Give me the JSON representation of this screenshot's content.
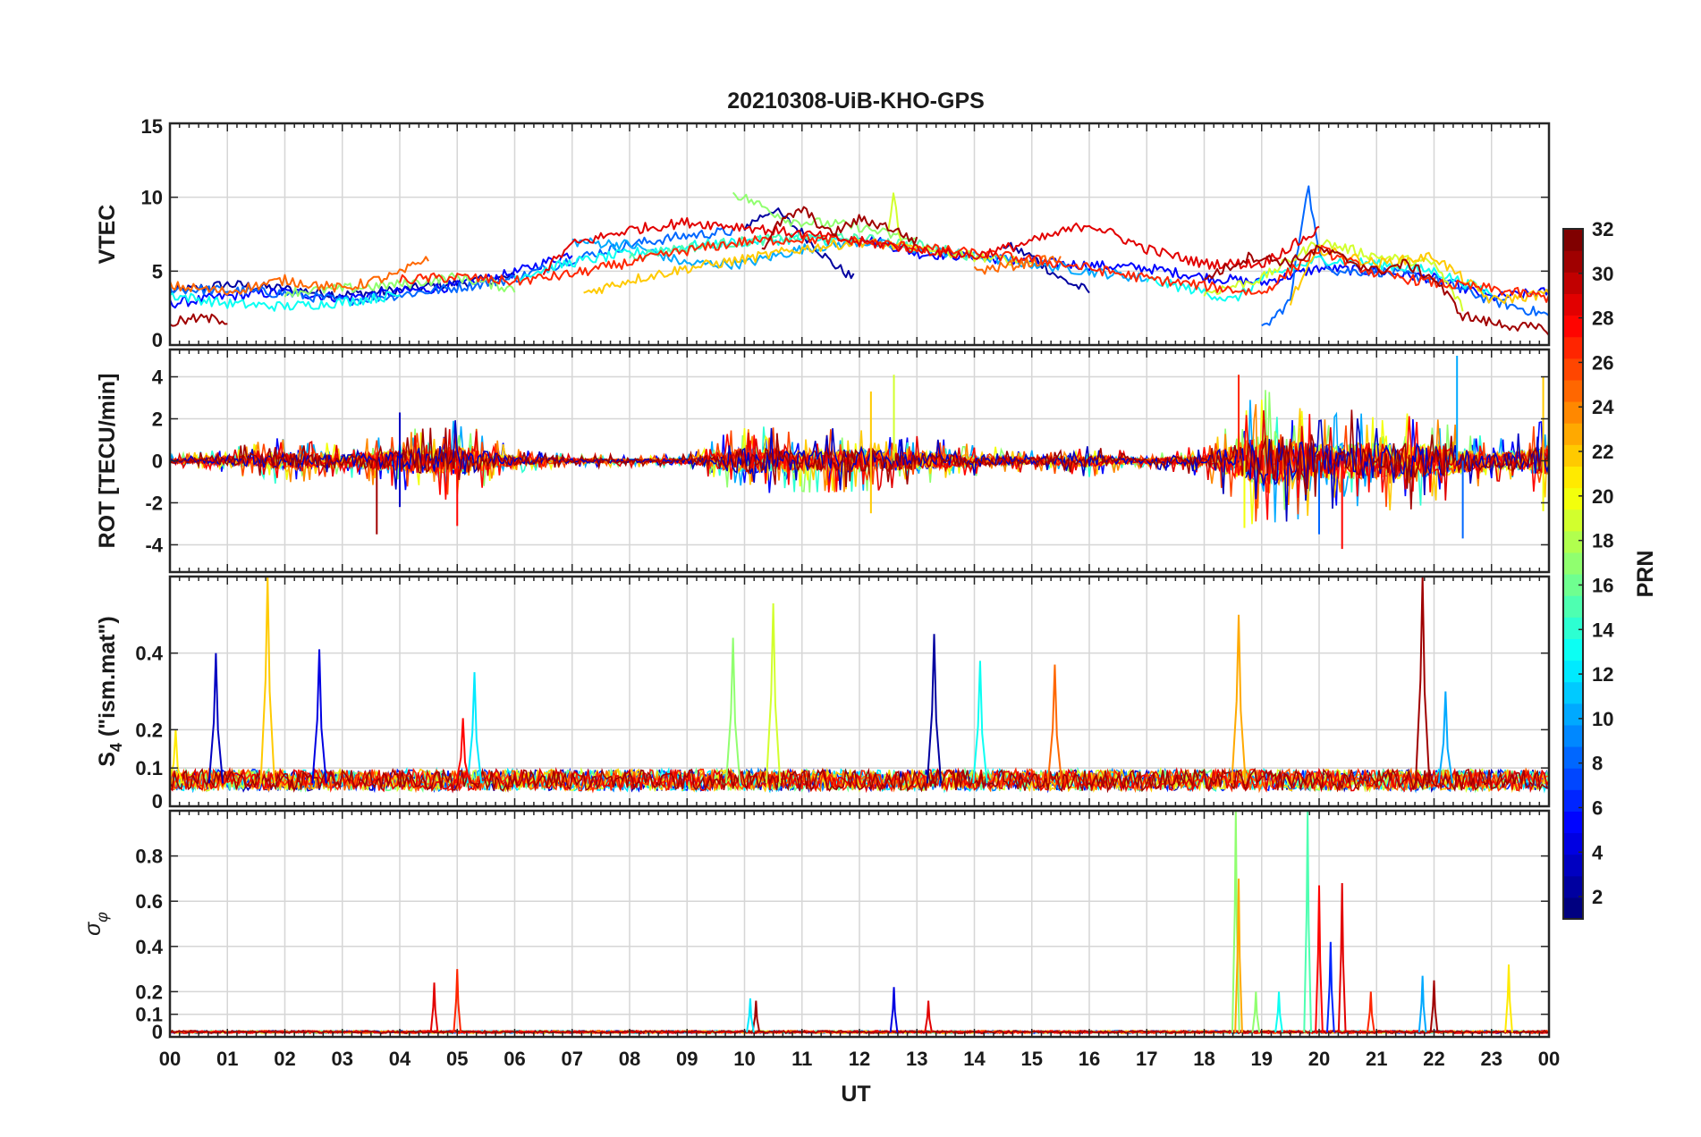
{
  "title": "20210308-UiB-KHO-GPS",
  "chart_data": [
    {
      "type": "line",
      "panel": "vtec",
      "ylabel": "VTEC",
      "ylim": [
        0,
        15
      ],
      "yticks": [
        0,
        5,
        10,
        15
      ],
      "ytick_labels": [
        "0",
        "5",
        "10",
        "15"
      ],
      "grid": true,
      "series": [
        {
          "prn": 2,
          "segments": [
            {
              "x": [
                0.0,
                1.0,
                2.0,
                3.0,
                4.0,
                5.0,
                6.0
              ],
              "y": [
                3.6,
                4.1,
                3.8,
                3.4,
                3.7,
                4.2,
                4.6
              ]
            },
            {
              "x": [
                10.0,
                10.5,
                11.0,
                11.5,
                11.9
              ],
              "y": [
                8.0,
                9.2,
                7.6,
                5.6,
                4.5
              ]
            },
            {
              "x": [
                14.5,
                15.0,
                15.5,
                16.0
              ],
              "y": [
                6.8,
                6.0,
                4.5,
                3.6
              ]
            }
          ]
        },
        {
          "prn": 5,
          "segments": [
            {
              "x": [
                0.0,
                1.0,
                2.0,
                3.0,
                4.0,
                5.0,
                6.0,
                7.0
              ],
              "y": [
                2.8,
                3.3,
                3.6,
                3.2,
                3.6,
                4.0,
                4.9,
                6.2
              ]
            },
            {
              "x": [
                12.0,
                13.0,
                14.0,
                15.0,
                16.0,
                17.0,
                18.0,
                19.0,
                20.0,
                21.0,
                22.0,
                23.0,
                24.0
              ],
              "y": [
                7.4,
                6.2,
                6.0,
                5.6,
                5.4,
                5.2,
                4.6,
                4.2,
                5.2,
                5.0,
                4.5,
                3.2,
                3.6
              ]
            }
          ]
        },
        {
          "prn": 8,
          "segments": [
            {
              "x": [
                0.0,
                1.0,
                2.0,
                3.0,
                4.0,
                5.0,
                6.0,
                7.0,
                8.0,
                9.0,
                9.8
              ],
              "y": [
                3.8,
                3.7,
                3.5,
                3.0,
                3.4,
                3.9,
                4.5,
                5.8,
                6.8,
                7.4,
                7.7
              ]
            },
            {
              "x": [
                19.0,
                19.5,
                19.8,
                20.0,
                20.3,
                21.0,
                22.0,
                23.0,
                24.0
              ],
              "y": [
                1.0,
                3.0,
                11.0,
                6.0,
                5.0,
                5.0,
                4.5,
                3.0,
                2.0
              ]
            }
          ]
        },
        {
          "prn": 10,
          "segments": [
            {
              "x": [
                7.0,
                8.0,
                9.0,
                10.0,
                11.0,
                12.0,
                13.0,
                14.0,
                15.0,
                16.0,
                17.0
              ],
              "y": [
                7.0,
                6.8,
                5.5,
                5.5,
                6.5,
                7.0,
                6.5,
                6.0,
                5.5,
                5.0,
                4.5
              ]
            }
          ]
        },
        {
          "prn": 13,
          "segments": [
            {
              "x": [
                0.0,
                1.0,
                2.0,
                3.0,
                4.0
              ],
              "y": [
                3.4,
                2.8,
                2.6,
                2.9,
                3.4
              ]
            },
            {
              "x": [
                6.0,
                7.0,
                8.0,
                9.0,
                10.0,
                11.0,
                12.0
              ],
              "y": [
                4.6,
                5.6,
                6.2,
                6.7,
                7.0,
                7.2,
                7.0
              ]
            },
            {
              "x": [
                17.0,
                18.0,
                18.5,
                19.0,
                20.0,
                21.0,
                22.0,
                23.0
              ],
              "y": [
                4.4,
                3.6,
                3.0,
                4.5,
                5.8,
                5.5,
                5.0,
                3.5
              ]
            }
          ]
        },
        {
          "prn": 15,
          "segments": [
            {
              "x": [
                8.0,
                9.0,
                10.0,
                11.0,
                12.0,
                13.0,
                14.0
              ],
              "y": [
                6.0,
                6.6,
                7.0,
                7.3,
                7.2,
                6.8,
                6.0
              ]
            }
          ]
        },
        {
          "prn": 17,
          "segments": [
            {
              "x": [
                2.0,
                3.0,
                4.0,
                5.0,
                6.0
              ],
              "y": [
                3.6,
                3.8,
                4.1,
                4.6,
                3.8
              ]
            },
            {
              "x": [
                9.8,
                10.2,
                10.8,
                11.5,
                12.0,
                12.5,
                13.0
              ],
              "y": [
                10.3,
                9.6,
                8.4,
                8.2,
                8.0,
                7.5,
                7.0
              ]
            }
          ]
        },
        {
          "prn": 19,
          "segments": [
            {
              "x": [
                12.5,
                12.6,
                12.7,
                13.0,
                14.0,
                15.0
              ],
              "y": [
                8.0,
                10.3,
                7.0,
                6.5,
                6.0,
                5.6
              ]
            },
            {
              "x": [
                18.0,
                19.0,
                20.0,
                21.0,
                22.0,
                22.5
              ],
              "y": [
                3.5,
                4.5,
                7.0,
                6.0,
                5.5,
                2.5
              ]
            }
          ]
        },
        {
          "prn": 22,
          "segments": [
            {
              "x": [
                7.2,
                8.0,
                9.0,
                10.0,
                11.0,
                12.0,
                13.0
              ],
              "y": [
                3.5,
                4.4,
                5.2,
                5.8,
                6.5,
                7.0,
                6.5
              ]
            },
            {
              "x": [
                19.5,
                20.0,
                21.0,
                22.0,
                23.0,
                24.0
              ],
              "y": [
                3.0,
                6.5,
                5.5,
                6.0,
                3.0,
                3.5
              ]
            }
          ]
        },
        {
          "prn": 25,
          "segments": [
            {
              "x": [
                0.0,
                1.0,
                2.0,
                3.0,
                4.0,
                4.5
              ],
              "y": [
                4.0,
                3.6,
                4.4,
                3.8,
                4.8,
                6.0
              ]
            },
            {
              "x": [
                14.0,
                15.0,
                15.5
              ],
              "y": [
                5.0,
                5.6,
                5.8
              ]
            }
          ]
        },
        {
          "prn": 27,
          "segments": [
            {
              "x": [
                4.0,
                5.0,
                6.0,
                7.0,
                8.0,
                9.0,
                10.0,
                11.0,
                12.0,
                13.0,
                14.0,
                15.0,
                16.0,
                17.0,
                18.0,
                19.0,
                20.0,
                21.0,
                22.0,
                23.0,
                24.0
              ],
              "y": [
                4.4,
                4.6,
                4.3,
                4.8,
                5.6,
                6.4,
                7.0,
                7.2,
                7.0,
                6.6,
                6.2,
                5.8,
                5.2,
                4.5,
                4.0,
                3.5,
                6.5,
                4.8,
                4.2,
                3.8,
                3.2
              ]
            }
          ]
        },
        {
          "prn": 29,
          "segments": [
            {
              "x": [
                6.5,
                7.0,
                8.0,
                9.0,
                10.0,
                11.0,
                12.0,
                13.0,
                14.0,
                15.0,
                16.0,
                17.0,
                18.0,
                19.0,
                20.0
              ],
              "y": [
                5.0,
                6.8,
                7.8,
                8.3,
                8.0,
                7.5,
                7.0,
                6.5,
                6.0,
                7.0,
                8.2,
                6.5,
                5.5,
                5.5,
                7.8
              ]
            }
          ]
        },
        {
          "prn": 31,
          "segments": [
            {
              "x": [
                0.0,
                0.5,
                1.0
              ],
              "y": [
                1.5,
                1.8,
                1.7
              ]
            },
            {
              "x": [
                10.3,
                10.6,
                11.0,
                11.5,
                12.0,
                12.5,
                13.0
              ],
              "y": [
                6.5,
                8.2,
                9.2,
                7.5,
                8.5,
                8.0,
                7.0
              ]
            },
            {
              "x": [
                18.0,
                18.8,
                19.5,
                20.0,
                21.0,
                21.5,
                22.0,
                22.5,
                23.0,
                24.0
              ],
              "y": [
                4.5,
                6.0,
                5.6,
                6.5,
                5.0,
                5.5,
                4.5,
                2.0,
                1.5,
                1.0
              ]
            }
          ]
        }
      ]
    },
    {
      "type": "line",
      "panel": "rot",
      "ylabel": "ROT [TECU/min]",
      "ylim": [
        -5.3,
        5.3
      ],
      "yticks": [
        -4,
        -2,
        0,
        2,
        4
      ],
      "ytick_labels": [
        "-4",
        "-2",
        "0",
        "2",
        "4"
      ],
      "grid": true,
      "activity_envelope_tecu_per_min": [
        0.3,
        0.6,
        1.2,
        0.8,
        1.5,
        2.0,
        0.6,
        0.3,
        0.3,
        0.3,
        1.8,
        1.5,
        1.6,
        1.2,
        0.8,
        0.5,
        0.8,
        0.3,
        0.8,
        3.5,
        2.5,
        2.5,
        2.2,
        1.0,
        2.0
      ],
      "peaks": [
        {
          "x": 3.6,
          "y": -3.5,
          "prn": 31
        },
        {
          "x": 4.0,
          "y": 2.3,
          "prn": 3
        },
        {
          "x": 4.0,
          "y": -2.2,
          "prn": 3
        },
        {
          "x": 5.0,
          "y": -3.1,
          "prn": 28
        },
        {
          "x": 12.6,
          "y": 4.1,
          "prn": 19
        },
        {
          "x": 12.2,
          "y": 3.3,
          "prn": 22
        },
        {
          "x": 12.2,
          "y": -2.5,
          "prn": 22
        },
        {
          "x": 18.6,
          "y": 4.1,
          "prn": 27
        },
        {
          "x": 18.7,
          "y": -3.2,
          "prn": 20
        },
        {
          "x": 20.4,
          "y": -4.2,
          "prn": 28
        },
        {
          "x": 20.0,
          "y": -3.5,
          "prn": 8
        },
        {
          "x": 22.4,
          "y": 5.0,
          "prn": 10
        },
        {
          "x": 22.5,
          "y": -3.7,
          "prn": 8
        },
        {
          "x": 23.9,
          "y": 4.0,
          "prn": 22
        },
        {
          "x": 23.9,
          "y": -2.4,
          "prn": 20
        }
      ]
    },
    {
      "type": "line",
      "panel": "s4",
      "ylabel": "S",
      "ylabel_subscript": "4",
      "ylabel_suffix": " (\"ism.mat\")",
      "ylim": [
        0,
        0.6
      ],
      "yticks": [
        0,
        0.1,
        0.2,
        0.4
      ],
      "ytick_labels": [
        "0",
        "0.1",
        "0.2",
        "0.4"
      ],
      "grid": true,
      "baseline": 0.06,
      "peaks": [
        {
          "x": 0.8,
          "y": 0.4,
          "prn": 3
        },
        {
          "x": 1.7,
          "y": 0.6,
          "prn": 22
        },
        {
          "x": 2.6,
          "y": 0.41,
          "prn": 4
        },
        {
          "x": 5.3,
          "y": 0.35,
          "prn": 12
        },
        {
          "x": 5.1,
          "y": 0.23,
          "prn": 28
        },
        {
          "x": 9.8,
          "y": 0.44,
          "prn": 17
        },
        {
          "x": 10.5,
          "y": 0.53,
          "prn": 19
        },
        {
          "x": 13.3,
          "y": 0.45,
          "prn": 2
        },
        {
          "x": 14.1,
          "y": 0.38,
          "prn": 13
        },
        {
          "x": 15.4,
          "y": 0.37,
          "prn": 25
        },
        {
          "x": 18.6,
          "y": 0.5,
          "prn": 23
        },
        {
          "x": 21.8,
          "y": 0.6,
          "prn": 31
        },
        {
          "x": 22.2,
          "y": 0.3,
          "prn": 10
        },
        {
          "x": 0.1,
          "y": 0.2,
          "prn": 21
        }
      ]
    },
    {
      "type": "line",
      "panel": "sigma_phi",
      "ylabel": "σ",
      "ylabel_subscript": "φ",
      "ylim": [
        0,
        1
      ],
      "yticks": [
        0,
        0.1,
        0.2,
        0.4,
        0.6,
        0.8
      ],
      "ytick_labels": [
        "0",
        "0.1",
        "0.2",
        "0.4",
        "0.6",
        "0.8"
      ],
      "grid": true,
      "baseline": 0.02,
      "peaks": [
        {
          "x": 4.6,
          "y": 0.24,
          "prn": 29
        },
        {
          "x": 5.0,
          "y": 0.3,
          "prn": 27
        },
        {
          "x": 10.2,
          "y": 0.16,
          "prn": 31
        },
        {
          "x": 10.1,
          "y": 0.17,
          "prn": 12
        },
        {
          "x": 12.6,
          "y": 0.22,
          "prn": 4
        },
        {
          "x": 13.2,
          "y": 0.16,
          "prn": 29
        },
        {
          "x": 18.55,
          "y": 1.0,
          "prn": 17
        },
        {
          "x": 18.6,
          "y": 0.7,
          "prn": 23
        },
        {
          "x": 18.9,
          "y": 0.2,
          "prn": 17
        },
        {
          "x": 19.3,
          "y": 0.2,
          "prn": 13
        },
        {
          "x": 19.8,
          "y": 1.0,
          "prn": 15
        },
        {
          "x": 20.0,
          "y": 0.67,
          "prn": 28
        },
        {
          "x": 20.2,
          "y": 0.42,
          "prn": 6
        },
        {
          "x": 20.4,
          "y": 0.68,
          "prn": 29
        },
        {
          "x": 20.9,
          "y": 0.2,
          "prn": 27
        },
        {
          "x": 21.8,
          "y": 0.27,
          "prn": 10
        },
        {
          "x": 22.0,
          "y": 0.25,
          "prn": 31
        },
        {
          "x": 23.3,
          "y": 0.32,
          "prn": 21
        }
      ]
    }
  ],
  "xaxis": {
    "label": "UT",
    "xlim": [
      0,
      24
    ],
    "tick_labels": [
      "00",
      "01",
      "02",
      "03",
      "04",
      "05",
      "06",
      "07",
      "08",
      "09",
      "10",
      "11",
      "12",
      "13",
      "14",
      "15",
      "16",
      "17",
      "18",
      "19",
      "20",
      "21",
      "22",
      "23",
      "00"
    ]
  },
  "colorbar": {
    "label": "PRN",
    "colormap": "jet",
    "range": [
      1,
      32
    ],
    "levels": 32,
    "tick_values": [
      2,
      4,
      6,
      8,
      10,
      12,
      14,
      16,
      18,
      20,
      22,
      24,
      26,
      28,
      30,
      32
    ],
    "tick_labels": [
      "2",
      "4",
      "6",
      "8",
      "10",
      "12",
      "14",
      "16",
      "18",
      "20",
      "22",
      "24",
      "26",
      "28",
      "30",
      "32"
    ]
  }
}
